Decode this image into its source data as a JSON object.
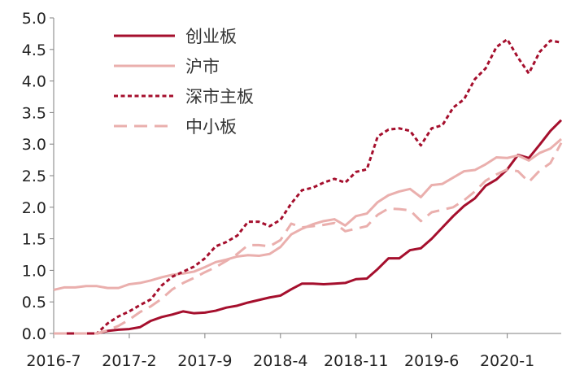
{
  "chart_data": {
    "type": "line",
    "title": "",
    "xlabel": "",
    "ylabel": "",
    "ylim": [
      0,
      5
    ],
    "yticks": [
      "0.0",
      "0.5",
      "1.0",
      "1.5",
      "2.0",
      "2.5",
      "3.0",
      "3.5",
      "4.0",
      "4.5",
      "5.0"
    ],
    "xticks": [
      "2016-7",
      "2017-2",
      "2017-9",
      "2018-4",
      "2018-11",
      "2019-6",
      "2020-1"
    ],
    "x": [
      "2016-7",
      "2016-8",
      "2016-9",
      "2016-10",
      "2016-11",
      "2016-12",
      "2017-1",
      "2017-2",
      "2017-3",
      "2017-4",
      "2017-5",
      "2017-6",
      "2017-7",
      "2017-8",
      "2017-9",
      "2017-10",
      "2017-11",
      "2017-12",
      "2018-1",
      "2018-2",
      "2018-3",
      "2018-4",
      "2018-5",
      "2018-6",
      "2018-7",
      "2018-8",
      "2018-9",
      "2018-10",
      "2018-11",
      "2018-12",
      "2019-1",
      "2019-2",
      "2019-3",
      "2019-4",
      "2019-5",
      "2019-6",
      "2019-7",
      "2019-8",
      "2019-9",
      "2019-10",
      "2019-11",
      "2019-12",
      "2020-1",
      "2020-2",
      "2020-3",
      "2020-4",
      "2020-5",
      "2020-6"
    ],
    "legend_position": "top-center",
    "grid": false,
    "series": [
      {
        "name": "创业板",
        "color": "#a50f2d",
        "dash": "solid",
        "values": [
          0.0,
          0.0,
          0.0,
          0.0,
          0.0,
          0.04,
          0.06,
          0.07,
          0.1,
          0.2,
          0.26,
          0.3,
          0.35,
          0.32,
          0.33,
          0.36,
          0.41,
          0.44,
          0.49,
          0.53,
          0.57,
          0.6,
          0.7,
          0.79,
          0.79,
          0.78,
          0.79,
          0.8,
          0.86,
          0.87,
          1.02,
          1.19,
          1.19,
          1.32,
          1.35,
          1.5,
          1.68,
          1.86,
          2.02,
          2.14,
          2.34,
          2.44,
          2.6,
          2.83,
          2.78,
          2.99,
          3.21,
          3.38
        ]
      },
      {
        "name": "沪市",
        "color": "#eaafad",
        "dash": "solid",
        "values": [
          0.69,
          0.73,
          0.73,
          0.75,
          0.75,
          0.72,
          0.72,
          0.78,
          0.8,
          0.84,
          0.89,
          0.93,
          0.95,
          0.98,
          1.05,
          1.13,
          1.17,
          1.22,
          1.24,
          1.23,
          1.26,
          1.37,
          1.57,
          1.66,
          1.73,
          1.78,
          1.81,
          1.71,
          1.86,
          1.9,
          2.08,
          2.19,
          2.25,
          2.29,
          2.16,
          2.35,
          2.37,
          2.47,
          2.57,
          2.59,
          2.68,
          2.79,
          2.78,
          2.82,
          2.74,
          2.86,
          2.93,
          3.08
        ]
      },
      {
        "name": "深市主板",
        "color": "#a50f2d",
        "dash": "dotted",
        "values": [
          0.0,
          0.0,
          0.0,
          0.0,
          0.0,
          0.16,
          0.27,
          0.35,
          0.45,
          0.54,
          0.76,
          0.9,
          0.98,
          1.06,
          1.19,
          1.38,
          1.45,
          1.55,
          1.77,
          1.77,
          1.7,
          1.8,
          2.06,
          2.27,
          2.31,
          2.39,
          2.45,
          2.39,
          2.56,
          2.6,
          3.12,
          3.23,
          3.25,
          3.21,
          2.98,
          3.25,
          3.3,
          3.58,
          3.71,
          4.03,
          4.2,
          4.54,
          4.66,
          4.37,
          4.12,
          4.46,
          4.64,
          4.61
        ]
      },
      {
        "name": "中小板",
        "color": "#eaafad",
        "dash": "dashed",
        "values": [
          0.0,
          0.0,
          0.0,
          0.0,
          0.0,
          0.05,
          0.12,
          0.22,
          0.34,
          0.43,
          0.55,
          0.7,
          0.8,
          0.88,
          0.97,
          1.05,
          1.15,
          1.26,
          1.4,
          1.4,
          1.38,
          1.48,
          1.74,
          1.68,
          1.7,
          1.72,
          1.75,
          1.62,
          1.66,
          1.7,
          1.88,
          1.98,
          1.97,
          1.95,
          1.78,
          1.92,
          1.96,
          2.0,
          2.11,
          2.25,
          2.42,
          2.52,
          2.6,
          2.57,
          2.4,
          2.58,
          2.7,
          3.02
        ]
      }
    ]
  }
}
